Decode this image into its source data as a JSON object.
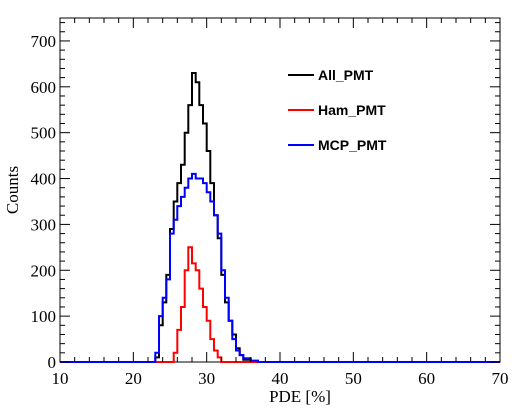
{
  "chart_data": {
    "type": "line",
    "xlabel": "PDE [%]",
    "ylabel": "Counts",
    "xlim": [
      10,
      70
    ],
    "ylim": [
      0,
      750
    ],
    "xticks": [
      10,
      20,
      30,
      40,
      50,
      60,
      70
    ],
    "yticks": [
      0,
      100,
      200,
      300,
      400,
      500,
      600,
      700
    ],
    "legend_position": "top-right",
    "series": [
      {
        "name": "All_PMT",
        "color": "#000000",
        "points": [
          [
            10,
            0
          ],
          [
            22.5,
            0
          ],
          [
            23,
            10
          ],
          [
            23.5,
            80
          ],
          [
            24,
            130
          ],
          [
            24.5,
            190
          ],
          [
            25,
            290
          ],
          [
            25.5,
            350
          ],
          [
            26,
            390
          ],
          [
            26.5,
            430
          ],
          [
            27,
            500
          ],
          [
            27.5,
            560
          ],
          [
            28,
            630
          ],
          [
            28.5,
            610
          ],
          [
            29,
            560
          ],
          [
            29.5,
            520
          ],
          [
            30,
            460
          ],
          [
            30.5,
            390
          ],
          [
            31,
            320
          ],
          [
            31.5,
            270
          ],
          [
            32,
            190
          ],
          [
            32.5,
            130
          ],
          [
            33,
            90
          ],
          [
            33.5,
            60
          ],
          [
            34,
            30
          ],
          [
            34.5,
            15
          ],
          [
            35,
            5
          ],
          [
            36,
            2
          ],
          [
            37,
            0
          ],
          [
            70,
            0
          ]
        ]
      },
      {
        "name": "Ham_PMT",
        "color": "#ff0000",
        "points": [
          [
            10,
            0
          ],
          [
            25,
            0
          ],
          [
            25.5,
            20
          ],
          [
            26,
            70
          ],
          [
            26.5,
            120
          ],
          [
            27,
            200
          ],
          [
            27.5,
            250
          ],
          [
            28,
            215
          ],
          [
            28.5,
            200
          ],
          [
            29,
            160
          ],
          [
            29.5,
            120
          ],
          [
            30,
            90
          ],
          [
            30.5,
            50
          ],
          [
            31,
            25
          ],
          [
            31.5,
            10
          ],
          [
            32,
            0
          ],
          [
            70,
            0
          ]
        ]
      },
      {
        "name": "MCP_PMT",
        "color": "#0000ff",
        "points": [
          [
            10,
            0
          ],
          [
            22.5,
            0
          ],
          [
            23,
            20
          ],
          [
            23.5,
            100
          ],
          [
            24,
            140
          ],
          [
            24.5,
            180
          ],
          [
            25,
            280
          ],
          [
            25.5,
            310
          ],
          [
            26,
            340
          ],
          [
            26.5,
            360
          ],
          [
            27,
            380
          ],
          [
            27.5,
            400
          ],
          [
            28,
            410
          ],
          [
            28.5,
            400
          ],
          [
            29,
            400
          ],
          [
            29.5,
            390
          ],
          [
            30,
            370
          ],
          [
            30.5,
            350
          ],
          [
            31,
            320
          ],
          [
            31.5,
            280
          ],
          [
            32,
            200
          ],
          [
            32.5,
            140
          ],
          [
            33,
            90
          ],
          [
            33.5,
            50
          ],
          [
            34,
            25
          ],
          [
            34.5,
            15
          ],
          [
            35,
            8
          ],
          [
            36,
            3
          ],
          [
            37,
            0
          ],
          [
            70,
            0
          ]
        ]
      }
    ]
  }
}
